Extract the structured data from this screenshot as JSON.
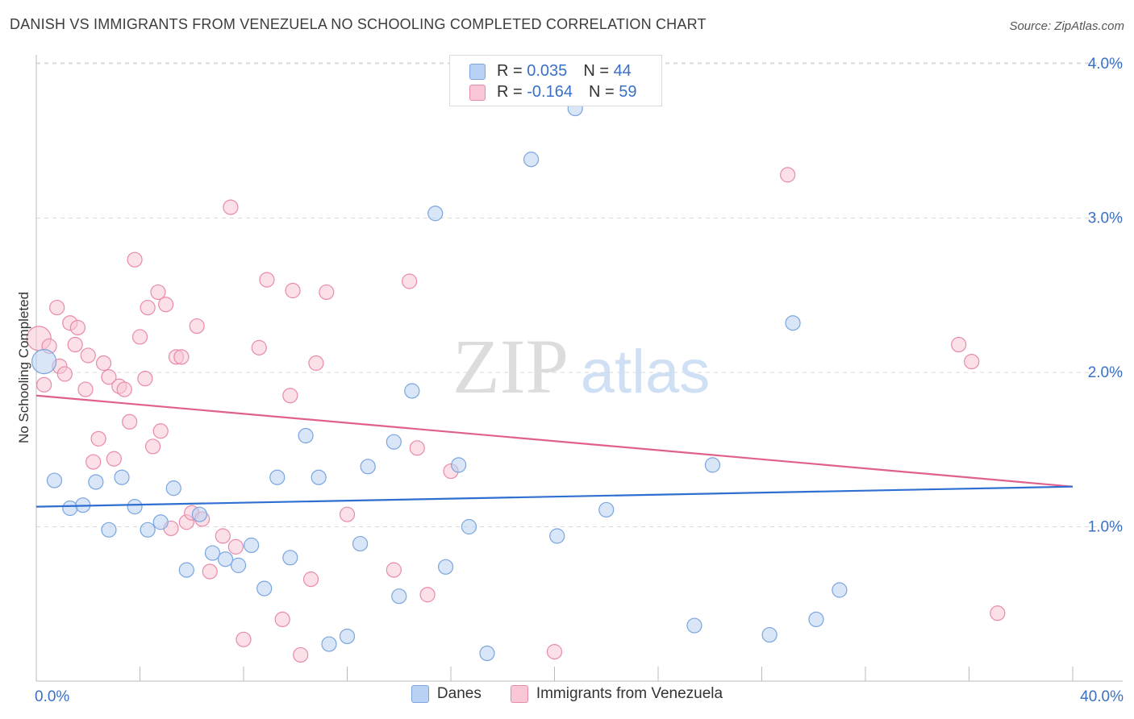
{
  "header": {
    "title": "DANISH VS IMMIGRANTS FROM VENEZUELA NO SCHOOLING COMPLETED CORRELATION CHART",
    "source": "Source: ZipAtlas.com"
  },
  "watermark": {
    "part1": "ZIP",
    "part2": "atlas"
  },
  "stats": [
    {
      "r_label": "R = ",
      "r_value": "0.035",
      "n_label": "N = ",
      "n_value": "44"
    },
    {
      "r_label": "R = ",
      "r_value": "-0.164",
      "n_label": "N = ",
      "n_value": "59"
    }
  ],
  "legend": {
    "series_a": "Danes",
    "series_b": "Immigrants from Venezuela"
  },
  "colors": {
    "danes_fill": "#b9d2f3",
    "danes_stroke": "#7aa5dd",
    "danes_line": "#2f6fd1",
    "venezuela_fill": "#f8c6d5",
    "venezuela_stroke": "#e98aa8",
    "venezuela_line": "#e0608d",
    "tick_label": "#3a70c4",
    "grid": "#d9d9d9"
  },
  "chart_data": {
    "type": "scatter",
    "title": "DANISH VS IMMIGRANTS FROM VENEZUELA NO SCHOOLING COMPLETED CORRELATION CHART",
    "xlabel": "",
    "ylabel": "No Schooling Completed",
    "xlim": [
      0,
      40
    ],
    "ylim": [
      0,
      4.1
    ],
    "x_tick_labels": [
      "0.0%",
      "40.0%"
    ],
    "y_ticks": [
      1,
      2,
      3,
      4
    ],
    "y_tick_labels": [
      "1.0%",
      "2.0%",
      "3.0%",
      "4.0%"
    ],
    "grid": "horizontal dashed",
    "legend_position": "bottom",
    "series": [
      {
        "name": "Danes",
        "r": 0.035,
        "n": 44,
        "trend": {
          "x": [
            0,
            40
          ],
          "y": [
            1.13,
            1.26
          ]
        },
        "points": [
          [
            0.3,
            2.07,
            2
          ],
          [
            0.7,
            1.3,
            1
          ],
          [
            1.3,
            1.12,
            1
          ],
          [
            1.8,
            1.14,
            1
          ],
          [
            2.3,
            1.29,
            1
          ],
          [
            2.8,
            0.98,
            1
          ],
          [
            3.3,
            1.32,
            1
          ],
          [
            3.8,
            1.13,
            1
          ],
          [
            4.3,
            0.98,
            1
          ],
          [
            4.8,
            1.03,
            1
          ],
          [
            5.3,
            1.25,
            1
          ],
          [
            5.8,
            0.72,
            1
          ],
          [
            6.3,
            1.08,
            1
          ],
          [
            6.8,
            0.83,
            1
          ],
          [
            7.3,
            0.79,
            1
          ],
          [
            7.8,
            0.75,
            1
          ],
          [
            8.3,
            0.88,
            1
          ],
          [
            8.8,
            0.6,
            1
          ],
          [
            9.3,
            1.32,
            1
          ],
          [
            9.8,
            0.8,
            1
          ],
          [
            10.4,
            1.59,
            1
          ],
          [
            10.9,
            1.32,
            1
          ],
          [
            11.3,
            0.24,
            1
          ],
          [
            12.0,
            0.29,
            1
          ],
          [
            12.5,
            0.89,
            1
          ],
          [
            12.8,
            1.39,
            1
          ],
          [
            13.8,
            1.55,
            1
          ],
          [
            14.0,
            0.55,
            1
          ],
          [
            14.5,
            1.88,
            1
          ],
          [
            15.4,
            3.03,
            1
          ],
          [
            15.8,
            0.74,
            1
          ],
          [
            16.3,
            1.4,
            1
          ],
          [
            16.7,
            1.0,
            1
          ],
          [
            17.4,
            0.18,
            1
          ],
          [
            19.1,
            3.38,
            1
          ],
          [
            20.1,
            0.94,
            1
          ],
          [
            20.8,
            3.71,
            1
          ],
          [
            22.0,
            1.11,
            1
          ],
          [
            25.4,
            0.36,
            1
          ],
          [
            26.1,
            1.4,
            1
          ],
          [
            28.3,
            0.3,
            1
          ],
          [
            29.2,
            2.32,
            1
          ],
          [
            30.1,
            0.4,
            1
          ],
          [
            31.0,
            0.59,
            1
          ]
        ]
      },
      {
        "name": "Immigrants from Venezuela",
        "r": -0.164,
        "n": 59,
        "trend": {
          "x": [
            0,
            40
          ],
          "y": [
            1.85,
            1.26
          ]
        },
        "points": [
          [
            0.1,
            2.22,
            2
          ],
          [
            0.3,
            1.92,
            1
          ],
          [
            0.5,
            2.17,
            1
          ],
          [
            0.8,
            2.42,
            1
          ],
          [
            0.9,
            2.04,
            1
          ],
          [
            1.1,
            1.99,
            1
          ],
          [
            1.3,
            2.32,
            1
          ],
          [
            1.5,
            2.18,
            1
          ],
          [
            1.6,
            2.29,
            1
          ],
          [
            1.9,
            1.89,
            1
          ],
          [
            2.0,
            2.11,
            1
          ],
          [
            2.2,
            1.42,
            1
          ],
          [
            2.4,
            1.57,
            1
          ],
          [
            2.6,
            2.06,
            1
          ],
          [
            2.8,
            1.97,
            1
          ],
          [
            3.0,
            1.44,
            1
          ],
          [
            3.2,
            1.91,
            1
          ],
          [
            3.4,
            1.89,
            1
          ],
          [
            3.6,
            1.68,
            1
          ],
          [
            3.8,
            2.73,
            1
          ],
          [
            4.0,
            2.23,
            1
          ],
          [
            4.2,
            1.96,
            1
          ],
          [
            4.3,
            2.42,
            1
          ],
          [
            4.5,
            1.52,
            1
          ],
          [
            4.7,
            2.52,
            1
          ],
          [
            4.8,
            1.62,
            1
          ],
          [
            5.0,
            2.44,
            1
          ],
          [
            5.2,
            0.99,
            1
          ],
          [
            5.4,
            2.1,
            1
          ],
          [
            5.6,
            2.1,
            1
          ],
          [
            5.8,
            1.03,
            1
          ],
          [
            6.0,
            1.09,
            1
          ],
          [
            6.2,
            2.3,
            1
          ],
          [
            6.4,
            1.05,
            1
          ],
          [
            6.7,
            0.71,
            1
          ],
          [
            7.2,
            0.94,
            1
          ],
          [
            7.5,
            3.07,
            1
          ],
          [
            7.7,
            0.87,
            1
          ],
          [
            8.0,
            0.27,
            1
          ],
          [
            8.6,
            2.16,
            1
          ],
          [
            8.9,
            2.6,
            1
          ],
          [
            9.5,
            0.4,
            1
          ],
          [
            9.8,
            1.85,
            1
          ],
          [
            9.9,
            2.53,
            1
          ],
          [
            10.2,
            0.17,
            1
          ],
          [
            10.6,
            0.66,
            1
          ],
          [
            10.8,
            2.06,
            1
          ],
          [
            11.2,
            2.52,
            1
          ],
          [
            12.0,
            1.08,
            1
          ],
          [
            13.8,
            0.72,
            1
          ],
          [
            14.4,
            2.59,
            1
          ],
          [
            14.7,
            1.51,
            1
          ],
          [
            15.1,
            0.56,
            1
          ],
          [
            16.0,
            1.36,
            1
          ],
          [
            20.0,
            0.19,
            1
          ],
          [
            29.0,
            3.28,
            1
          ],
          [
            35.6,
            2.18,
            1
          ],
          [
            36.1,
            2.07,
            1
          ],
          [
            37.1,
            0.44,
            1
          ]
        ]
      }
    ]
  }
}
